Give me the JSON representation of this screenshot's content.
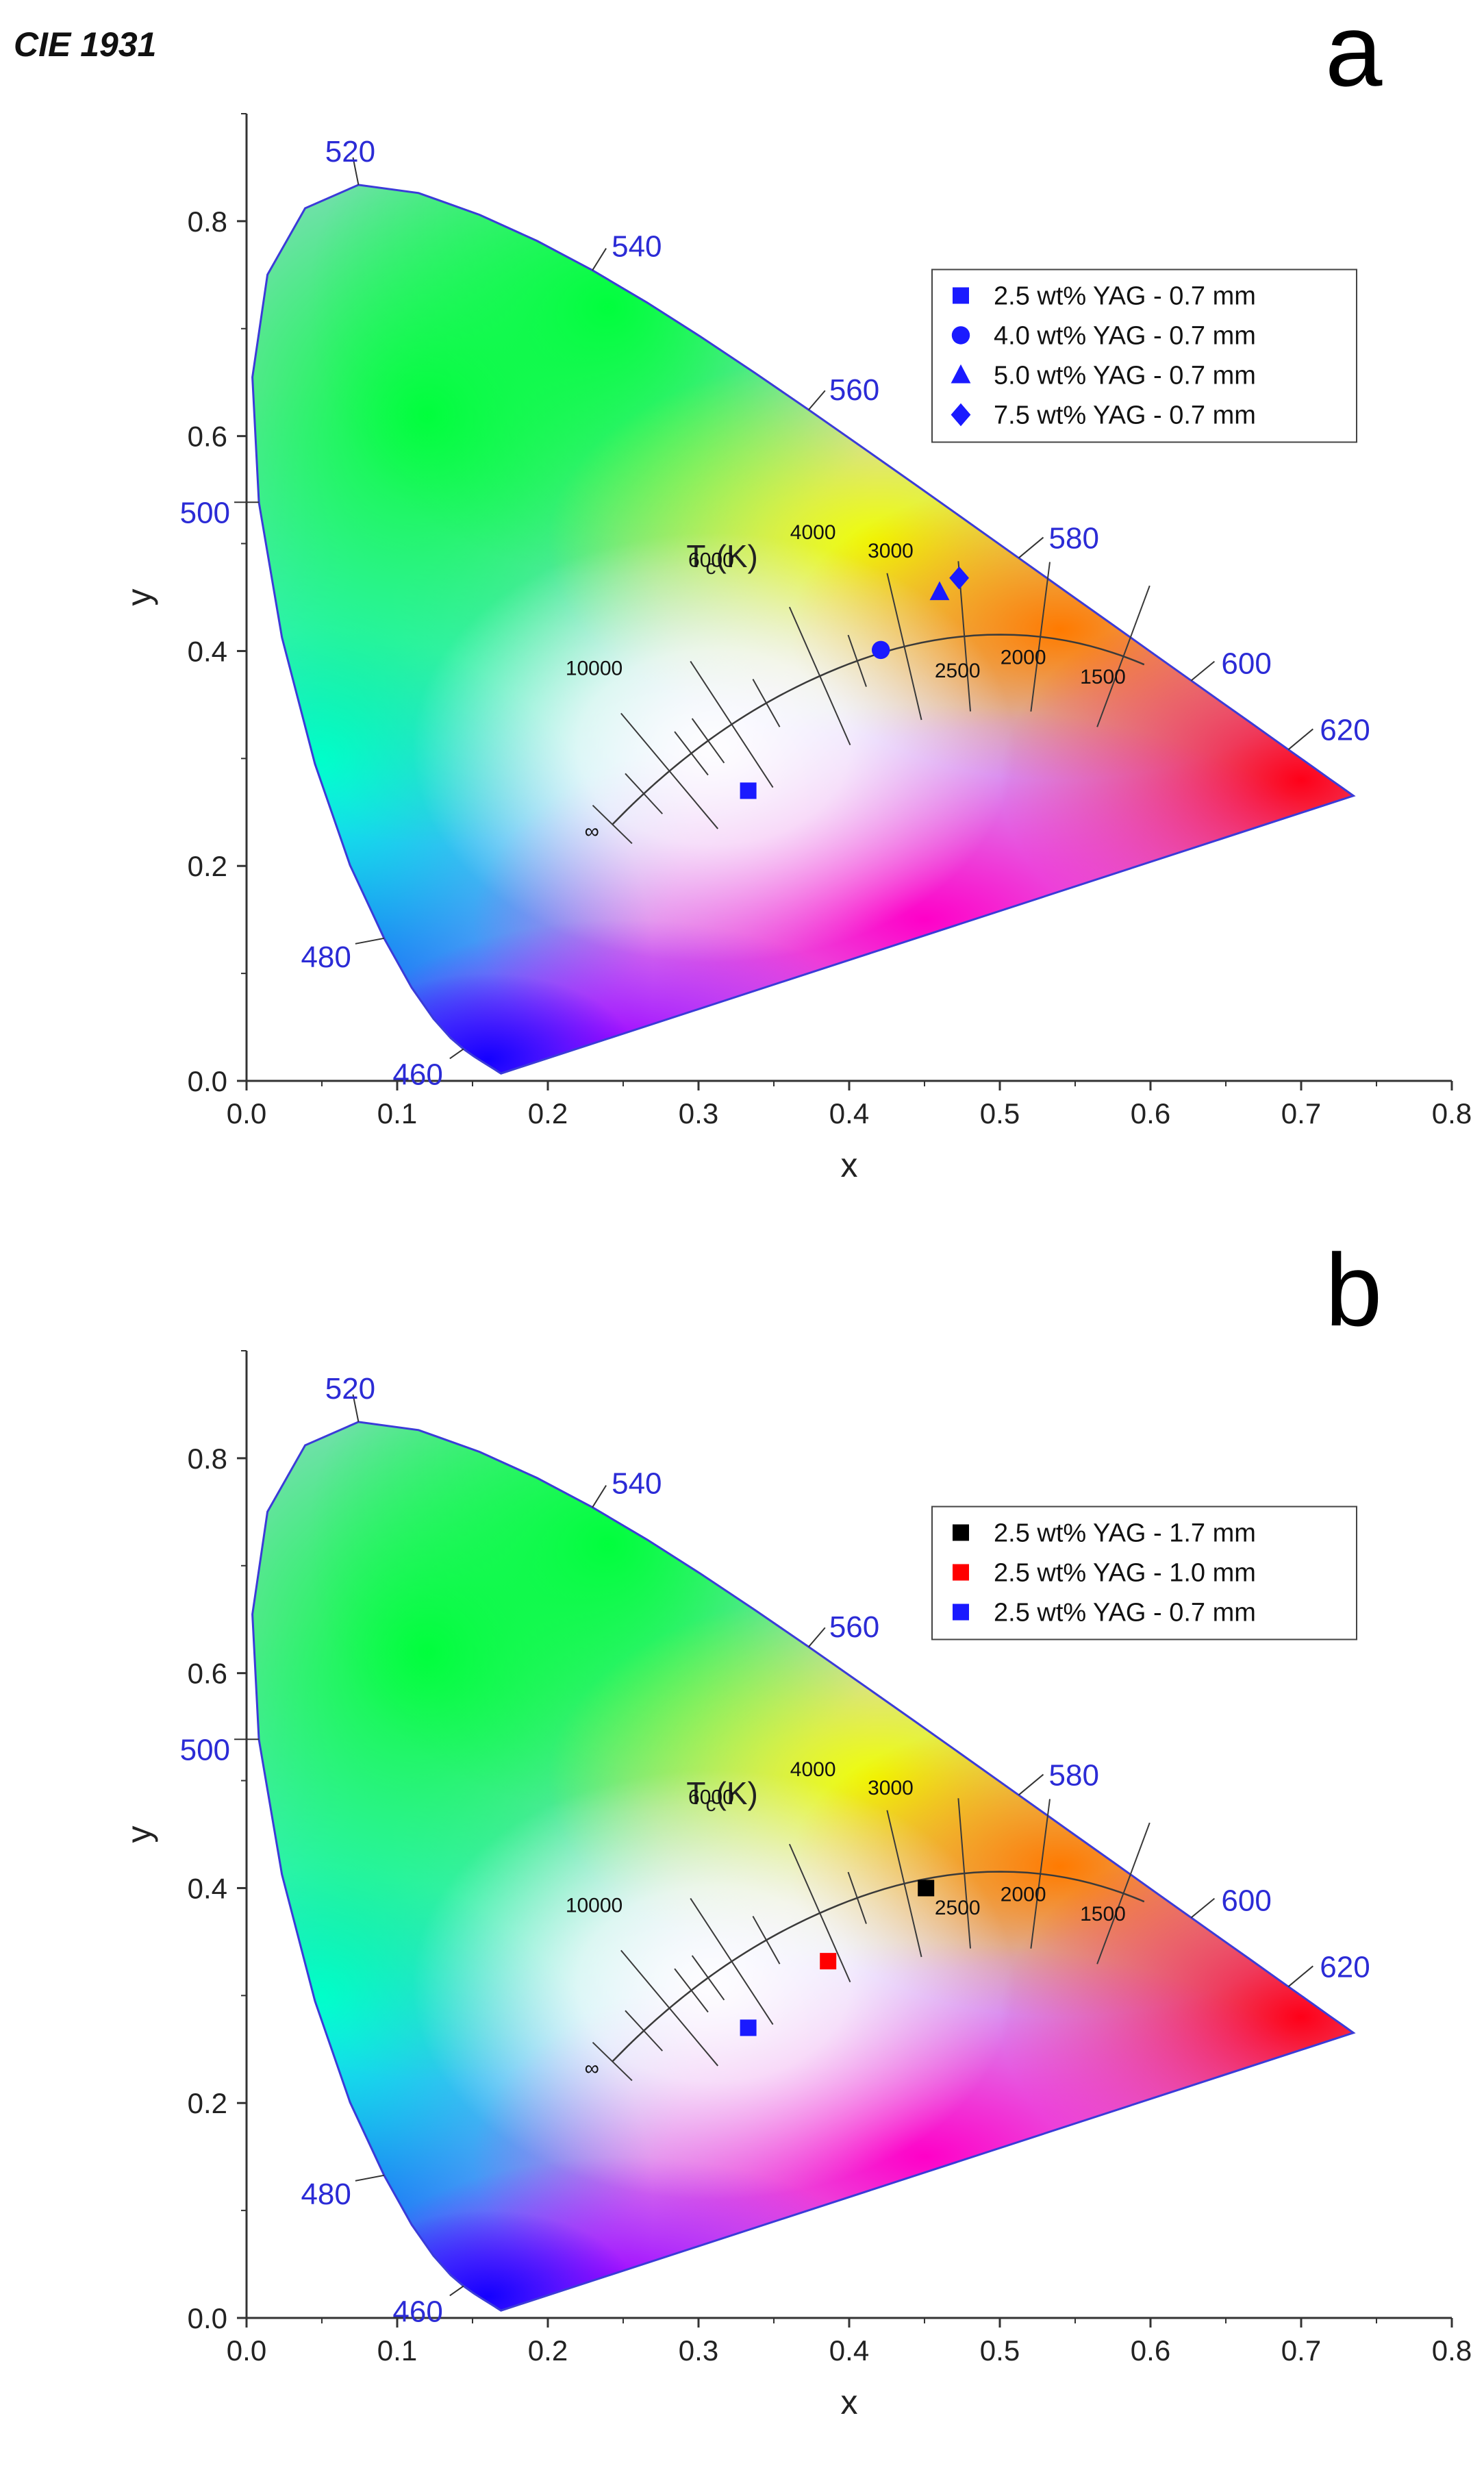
{
  "figure": {
    "title": "CIE 1931",
    "colors": {
      "locus": "#3b3bd8",
      "wavelength_label": "#2b2bd6",
      "axis": "#333333",
      "planckian": "#3a3a3a"
    }
  },
  "chart_data": [
    {
      "type": "scatter",
      "panel": "a",
      "xlabel": "x",
      "ylabel": "y",
      "xlim": [
        0.0,
        0.8
      ],
      "ylim": [
        0.0,
        0.9
      ],
      "x_ticks": [
        "0.0",
        "0.1",
        "0.2",
        "0.3",
        "0.4",
        "0.5",
        "0.6",
        "0.7",
        "0.8"
      ],
      "y_ticks": [
        "0.0",
        "0.2",
        "0.4",
        "0.6",
        "0.8"
      ],
      "wavelength_labels": [
        "460",
        "480",
        "500",
        "520",
        "540",
        "560",
        "580",
        "600",
        "620"
      ],
      "cct_title": "T_c(K)",
      "cct_labels": [
        "∞",
        "10000",
        "6000",
        "4000",
        "3000",
        "2500",
        "2000",
        "1500"
      ],
      "legend": {
        "position": "top-right"
      },
      "series": [
        {
          "name": "2.5 wt% YAG - 0.7 mm",
          "marker": "square",
          "color": "#1a1aff",
          "x": 0.333,
          "y": 0.27
        },
        {
          "name": "4.0 wt% YAG - 0.7 mm",
          "marker": "circle",
          "color": "#1a1aff",
          "x": 0.421,
          "y": 0.401
        },
        {
          "name": "5.0 wt% YAG - 0.7 mm",
          "marker": "triangle",
          "color": "#1a1aff",
          "x": 0.46,
          "y": 0.455
        },
        {
          "name": "7.5 wt% YAG - 0.7 mm",
          "marker": "diamond",
          "color": "#1a1aff",
          "x": 0.473,
          "y": 0.468
        }
      ]
    },
    {
      "type": "scatter",
      "panel": "b",
      "xlabel": "x",
      "ylabel": "y",
      "xlim": [
        0.0,
        0.8
      ],
      "ylim": [
        0.0,
        0.9
      ],
      "x_ticks": [
        "0.0",
        "0.1",
        "0.2",
        "0.3",
        "0.4",
        "0.5",
        "0.6",
        "0.7",
        "0.8"
      ],
      "y_ticks": [
        "0.0",
        "0.2",
        "0.4",
        "0.6",
        "0.8"
      ],
      "wavelength_labels": [
        "460",
        "480",
        "500",
        "520",
        "540",
        "560",
        "580",
        "600",
        "620"
      ],
      "cct_title": "T_c(K)",
      "cct_labels": [
        "∞",
        "10000",
        "6000",
        "4000",
        "3000",
        "2500",
        "2000",
        "1500"
      ],
      "legend": {
        "position": "top-right"
      },
      "series": [
        {
          "name": "2.5 wt% YAG - 1.7 mm",
          "marker": "square",
          "color": "#000000",
          "x": 0.451,
          "y": 0.4
        },
        {
          "name": "2.5 wt% YAG - 1.0 mm",
          "marker": "square",
          "color": "#ff0000",
          "x": 0.386,
          "y": 0.332
        },
        {
          "name": "2.5 wt% YAG - 0.7 mm",
          "marker": "square",
          "color": "#1a1aff",
          "x": 0.333,
          "y": 0.27
        }
      ]
    }
  ]
}
